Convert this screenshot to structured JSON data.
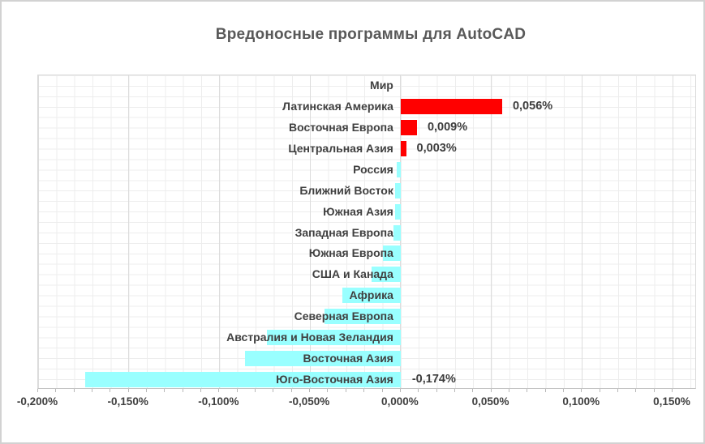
{
  "chart_data": {
    "type": "bar",
    "orientation": "horizontal",
    "title": "Вредоносные программы для AutoCAD",
    "unit": "%",
    "categories": [
      "Мир",
      "Латинская Америка",
      "Восточная Европа",
      "Центральная Азия",
      "Россия",
      "Ближний Восток",
      "Южная Азия",
      "Западная Европа",
      "Южная Европа",
      "США и Канада",
      "Африка",
      "Северная Европа",
      "Австралия и Новая Зеландия",
      "Восточная Азия",
      "Юго-Восточная Азия"
    ],
    "values": [
      0,
      0.056,
      0.009,
      0.003,
      -0.002,
      -0.003,
      -0.003,
      -0.004,
      -0.01,
      -0.016,
      -0.032,
      -0.042,
      -0.074,
      -0.086,
      -0.174
    ],
    "data_labels": [
      "",
      "0,056%",
      "0,009%",
      "0,003%",
      "",
      "",
      "",
      "",
      "",
      "",
      "",
      "",
      "",
      "",
      "-0,174%"
    ],
    "xlim": [
      -0.2,
      0.15
    ],
    "x_major_step": 0.05,
    "x_minor_step": 0.01,
    "x_tick_labels": [
      "-0,200%",
      "-0,150%",
      "-0,100%",
      "-0,050%",
      "0,000%",
      "0,050%",
      "0,100%",
      "0,150%"
    ],
    "legend": "none",
    "grid": "on",
    "colors": {
      "positive_bar": "#ff0000",
      "negative_bar": "#99ffff",
      "title_text": "#595959",
      "label_text": "#404040",
      "grid_minor": "#ededed",
      "grid_major": "#dcdcdc",
      "axis_line": "#c4c4c4",
      "chart_border": "#d2d2d2"
    }
  }
}
